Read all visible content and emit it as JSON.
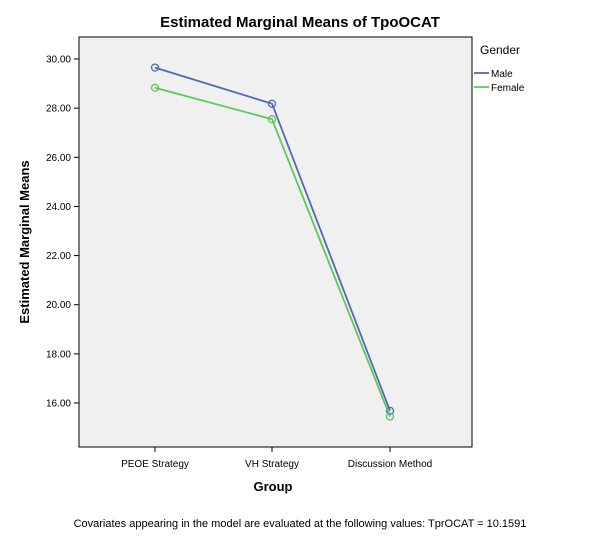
{
  "chart_data": {
    "type": "line",
    "title": "Estimated Marginal Means of TpoOCAT",
    "xlabel": "Group",
    "ylabel": "Estimated Marginal Means",
    "categories": [
      "PEOE Strategy",
      "VH Strategy",
      "Discussion Method"
    ],
    "yticks": [
      "16.00",
      "18.00",
      "20.00",
      "22.00",
      "24.00",
      "26.00",
      "28.00",
      "30.00"
    ],
    "ylim": [
      15.0,
      30.6
    ],
    "grid": false,
    "legend": {
      "title": "Gender",
      "placement": "top-right-outside"
    },
    "series": [
      {
        "name": "Male",
        "color": "#5468b4",
        "values": [
          29.65,
          28.18,
          15.68
        ]
      },
      {
        "name": "Female",
        "color": "#5cc85a",
        "values": [
          28.83,
          27.55,
          15.45
        ]
      }
    ],
    "footnote": "Covariates appearing in the model are evaluated at the following values: TprOCAT = 10.1591"
  }
}
